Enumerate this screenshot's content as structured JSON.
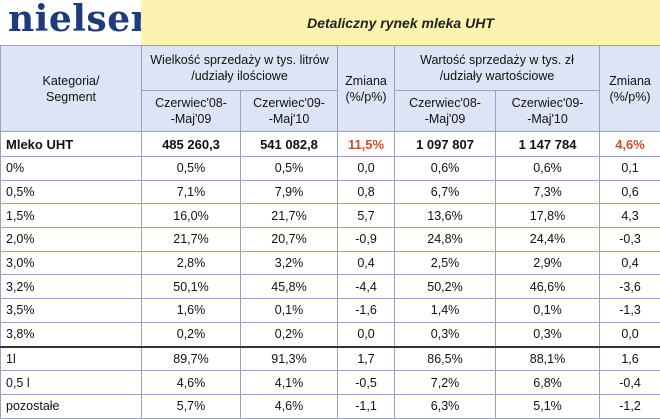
{
  "brand": {
    "logo_text": "nielsen"
  },
  "title": "Detaliczny rynek mleka UHT",
  "headers": {
    "category": [
      "Kategoria/",
      "Segment"
    ],
    "volume_group": [
      "Wielkość sprzedaży w tys. litrów",
      "/udziały ilościowe"
    ],
    "value_group": [
      "Wartość sprzedaży w tys. zł",
      "/udziały wartościowe"
    ],
    "change_volume": [
      "Zmiana",
      "(%/p%)"
    ],
    "change_value": [
      "Zmiana",
      "(%/p%)"
    ],
    "period1": [
      "Czerwiec'08-",
      "-Maj'09"
    ],
    "period2": [
      "Czerwiec'09-",
      "-Maj'10"
    ],
    "period1b": [
      "Czerwiec'08-",
      "-Maj'09"
    ],
    "period2b": [
      "Czerwiec'09-",
      "-Maj'10"
    ]
  },
  "total_row": {
    "label": "Mleko UHT",
    "vol1": "485 260,3",
    "vol2": "541 082,8",
    "vol_change": "11,5%",
    "val1": "1 097 807",
    "val2": "1 147 784",
    "val_change": "4,6%"
  },
  "rows": [
    {
      "label": "0%",
      "vol1": "0,5%",
      "vol2": "0,5%",
      "vol_change": "0,0",
      "val1": "0,6%",
      "val2": "0,6%",
      "val_change": "0,1"
    },
    {
      "label": "0,5%",
      "vol1": "7,1%",
      "vol2": "7,9%",
      "vol_change": "0,8",
      "val1": "6,7%",
      "val2": "7,3%",
      "val_change": "0,6"
    },
    {
      "label": "1,5%",
      "vol1": "16,0%",
      "vol2": "21,7%",
      "vol_change": "5,7",
      "val1": "13,6%",
      "val2": "17,8%",
      "val_change": "4,3"
    },
    {
      "label": "2,0%",
      "vol1": "21,7%",
      "vol2": "20,7%",
      "vol_change": "-0,9",
      "val1": "24,8%",
      "val2": "24,4%",
      "val_change": "-0,3"
    },
    {
      "label": "3,0%",
      "vol1": "2,8%",
      "vol2": "3,2%",
      "vol_change": "0,4",
      "val1": "2,5%",
      "val2": "2,9%",
      "val_change": "0,4"
    },
    {
      "label": "3,2%",
      "vol1": "50,1%",
      "vol2": "45,8%",
      "vol_change": "-4,4",
      "val1": "50,2%",
      "val2": "46,6%",
      "val_change": "-3,6"
    },
    {
      "label": "3,5%",
      "vol1": "1,6%",
      "vol2": "0,1%",
      "vol_change": "-1,6",
      "val1": "1,4%",
      "val2": "0,1%",
      "val_change": "-1,3"
    },
    {
      "label": "3,8%",
      "vol1": "0,2%",
      "vol2": "0,2%",
      "vol_change": "0,0",
      "val1": "0,3%",
      "val2": "0,3%",
      "val_change": "0,0"
    },
    {
      "label": "1l",
      "vol1": "89,7%",
      "vol2": "91,3%",
      "vol_change": "1,7",
      "val1": "86,5%",
      "val2": "88,1%",
      "val_change": "1,6"
    },
    {
      "label": "0,5 l",
      "vol1": "4,6%",
      "vol2": "4,1%",
      "vol_change": "-0,5",
      "val1": "7,2%",
      "val2": "6,8%",
      "val_change": "-0,4"
    },
    {
      "label": "pozostałe",
      "vol1": "5,7%",
      "vol2": "4,6%",
      "vol_change": "-1,1",
      "val1": "6,3%",
      "val2": "5,1%",
      "val_change": "-1,2"
    }
  ],
  "colors": {
    "header_bg": "#dde4f5",
    "title_bg": "#fdf3b0",
    "highlight": "#c8512c",
    "logo": "#1e3b7c"
  }
}
